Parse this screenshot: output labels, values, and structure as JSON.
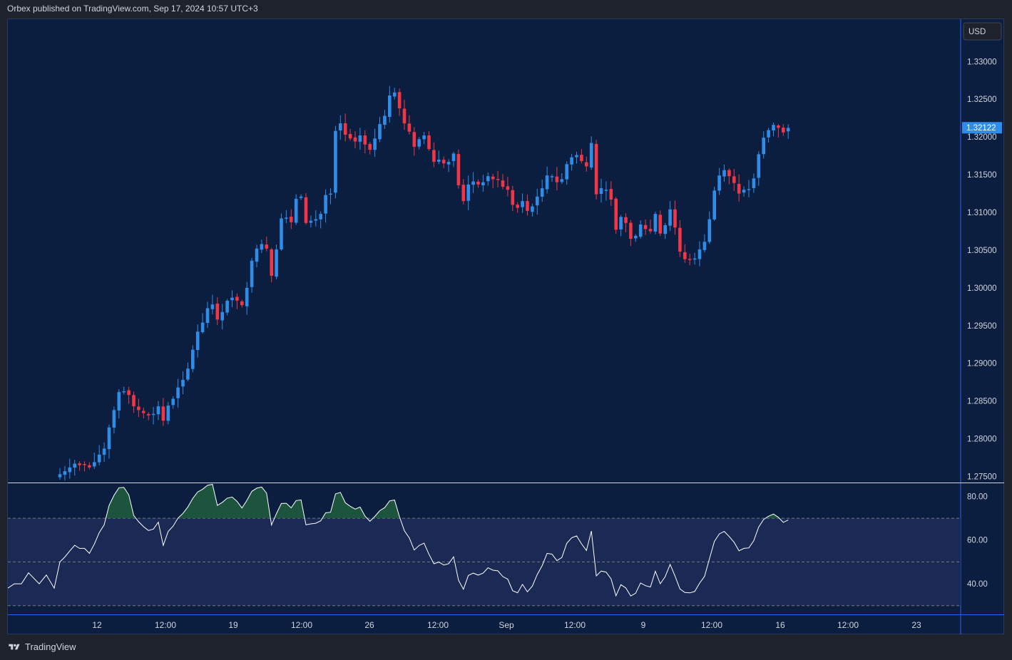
{
  "header": {
    "text": "Orbex published on TradingView.com, Sep 17, 2024 10:57 UTC+3"
  },
  "footer": {
    "brand": "TradingView"
  },
  "chart_data": [
    {
      "type": "candlestick",
      "currency_label": "USD",
      "current_price": "1.32122",
      "y_ticks": [
        "1.33000",
        "1.32500",
        "1.32000",
        "1.31500",
        "1.31000",
        "1.30500",
        "1.30000",
        "1.29500",
        "1.29000",
        "1.28500",
        "1.28000",
        "1.27500"
      ],
      "ylim": [
        1.2742,
        1.3356
      ],
      "x_ticks": [
        "12",
        "12:00",
        "19",
        "12:00",
        "26",
        "12:00",
        "Sep",
        "12:00",
        "9",
        "12:00",
        "16",
        "12:00",
        "23"
      ],
      "grid": false,
      "colors": {
        "up": "#2f8dea",
        "down": "#f23645",
        "background": "#0b1e3f"
      },
      "closes": [
        1.2753,
        1.2757,
        1.2762,
        1.2767,
        1.2765,
        1.2765,
        1.2762,
        1.2769,
        1.2779,
        1.2787,
        1.2815,
        1.2838,
        1.2862,
        1.2863,
        1.2858,
        1.2843,
        1.2838,
        1.2834,
        1.2831,
        1.2833,
        1.2843,
        1.2824,
        1.2844,
        1.2853,
        1.2868,
        1.2878,
        1.2893,
        1.2918,
        1.2942,
        1.2954,
        1.2973,
        1.2978,
        1.2958,
        1.2968,
        1.2983,
        1.2987,
        1.2983,
        1.2977,
        1.3,
        1.3036,
        1.3052,
        1.3058,
        1.3052,
        1.3016,
        1.3051,
        1.3092,
        1.3093,
        1.3087,
        1.3118,
        1.3121,
        1.3086,
        1.3089,
        1.3091,
        1.3098,
        1.3123,
        1.3125,
        1.3208,
        1.3218,
        1.3203,
        1.3198,
        1.3194,
        1.3202,
        1.319,
        1.3183,
        1.3198,
        1.3217,
        1.3228,
        1.3255,
        1.3259,
        1.3238,
        1.3218,
        1.3207,
        1.3187,
        1.3197,
        1.3202,
        1.3184,
        1.3167,
        1.317,
        1.3165,
        1.3167,
        1.3178,
        1.3136,
        1.3115,
        1.3137,
        1.3141,
        1.3137,
        1.314,
        1.3148,
        1.3144,
        1.3143,
        1.3134,
        1.313,
        1.311,
        1.3106,
        1.3115,
        1.3102,
        1.3108,
        1.3121,
        1.3132,
        1.3149,
        1.3148,
        1.314,
        1.3144,
        1.3164,
        1.3173,
        1.3176,
        1.3168,
        1.3161,
        1.3192,
        1.3124,
        1.3132,
        1.313,
        1.3117,
        1.3077,
        1.3094,
        1.3086,
        1.3065,
        1.3069,
        1.3084,
        1.3078,
        1.3075,
        1.3098,
        1.3072,
        1.3083,
        1.3104,
        1.308,
        1.3048,
        1.3038,
        1.3037,
        1.3039,
        1.3051,
        1.3061,
        1.3091,
        1.3129,
        1.3149,
        1.3156,
        1.3148,
        1.3139,
        1.3125,
        1.313,
        1.3131,
        1.3145,
        1.3177,
        1.3199,
        1.3209,
        1.3216,
        1.3212,
        1.3206,
        1.3212
      ]
    },
    {
      "type": "line",
      "y_ticks": [
        "80.00",
        "60.00",
        "40.00"
      ],
      "ylim": [
        26,
        86
      ],
      "levels": [
        70,
        50,
        30
      ],
      "colors": {
        "line": "#ffffff",
        "band": "#1a2a55",
        "overbought_fill": "#1f5a3e"
      }
    }
  ]
}
